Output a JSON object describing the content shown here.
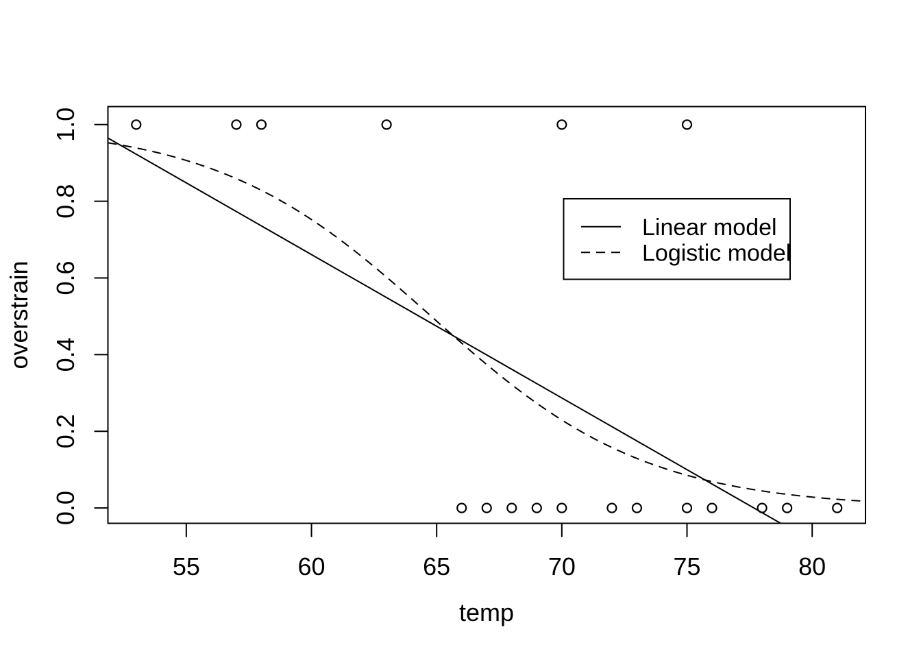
{
  "figure": {
    "background": "#ffffff",
    "foreground": "#000000"
  },
  "chart_data": {
    "type": "scatter",
    "title": "",
    "xlabel": "temp",
    "ylabel": "overstrain",
    "grid": false,
    "marker": "open-circle",
    "x_axis": {
      "min": 51.87,
      "max": 82.13,
      "ticks": [
        55,
        60,
        65,
        70,
        75,
        80
      ],
      "tick_labels": [
        "55",
        "60",
        "65",
        "70",
        "75",
        "80"
      ]
    },
    "y_axis": {
      "min": -0.04,
      "max": 1.047,
      "ticks": [
        0,
        0.2,
        0.4,
        0.6,
        0.8,
        1
      ],
      "tick_labels": [
        "0.0",
        "0.2",
        "0.4",
        "0.6",
        "0.8",
        "1.0"
      ]
    },
    "points": {
      "overstrain_1_temps": [
        53,
        57,
        58,
        63,
        70,
        75
      ],
      "overstrain_0_temps": [
        66,
        67,
        68,
        69,
        70,
        72,
        73,
        75,
        76,
        78,
        79,
        81
      ]
    },
    "series": [
      {
        "name": "Linear model",
        "style": "solid",
        "model": "linear",
        "intercept": 2.905,
        "slope": -0.0374
      },
      {
        "name": "Logistic model",
        "style": "dashed",
        "model": "logistic",
        "b0": 15.043,
        "b1": -0.2322
      }
    ],
    "legend": {
      "position": "upper-right",
      "entries": [
        {
          "label": "Linear model",
          "line": "solid"
        },
        {
          "label": "Logistic model",
          "line": "dashed"
        }
      ]
    }
  }
}
